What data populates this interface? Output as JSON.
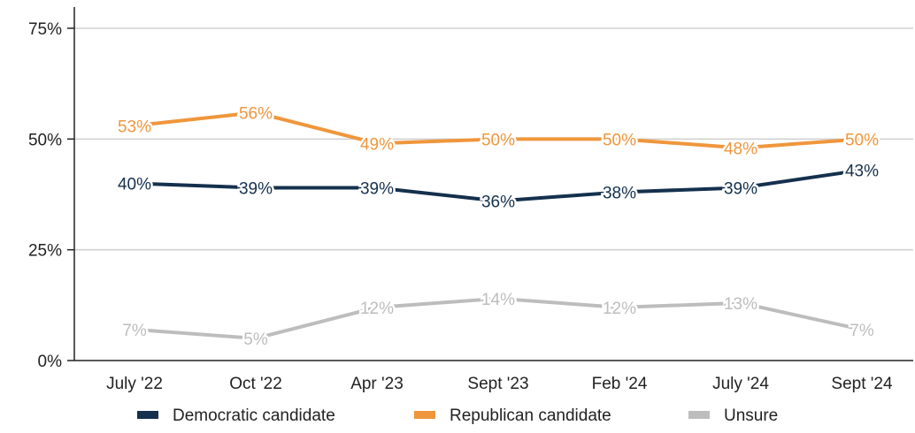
{
  "chart_data": {
    "type": "line",
    "title": "",
    "xlabel": "",
    "ylabel": "",
    "ylim": [
      0,
      75
    ],
    "y_ticks": [
      0,
      25,
      50,
      75
    ],
    "y_tick_labels": [
      "0%",
      "25%",
      "50%",
      "75%"
    ],
    "categories": [
      "July '22",
      "Oct '22",
      "Apr '23",
      "Sept '23",
      "Feb '24",
      "July '24",
      "Sept '24"
    ],
    "grid": "horizontal",
    "legend_position": "bottom",
    "series": [
      {
        "name": "Democratic candidate",
        "color": "#14304d",
        "values": [
          40,
          39,
          39,
          36,
          38,
          39,
          43
        ],
        "labels": [
          "40%",
          "39%",
          "39%",
          "36%",
          "38%",
          "39%",
          "43%"
        ]
      },
      {
        "name": "Republican candidate",
        "color": "#ef963c",
        "values": [
          53,
          56,
          49,
          50,
          50,
          48,
          50
        ],
        "labels": [
          "53%",
          "56%",
          "49%",
          "50%",
          "50%",
          "48%",
          "50%"
        ]
      },
      {
        "name": "Unsure",
        "color": "#bdbdbd",
        "values": [
          7,
          5,
          12,
          14,
          12,
          13,
          7
        ],
        "labels": [
          "7%",
          "5%",
          "12%",
          "14%",
          "12%",
          "13%",
          "7%"
        ]
      }
    ]
  }
}
